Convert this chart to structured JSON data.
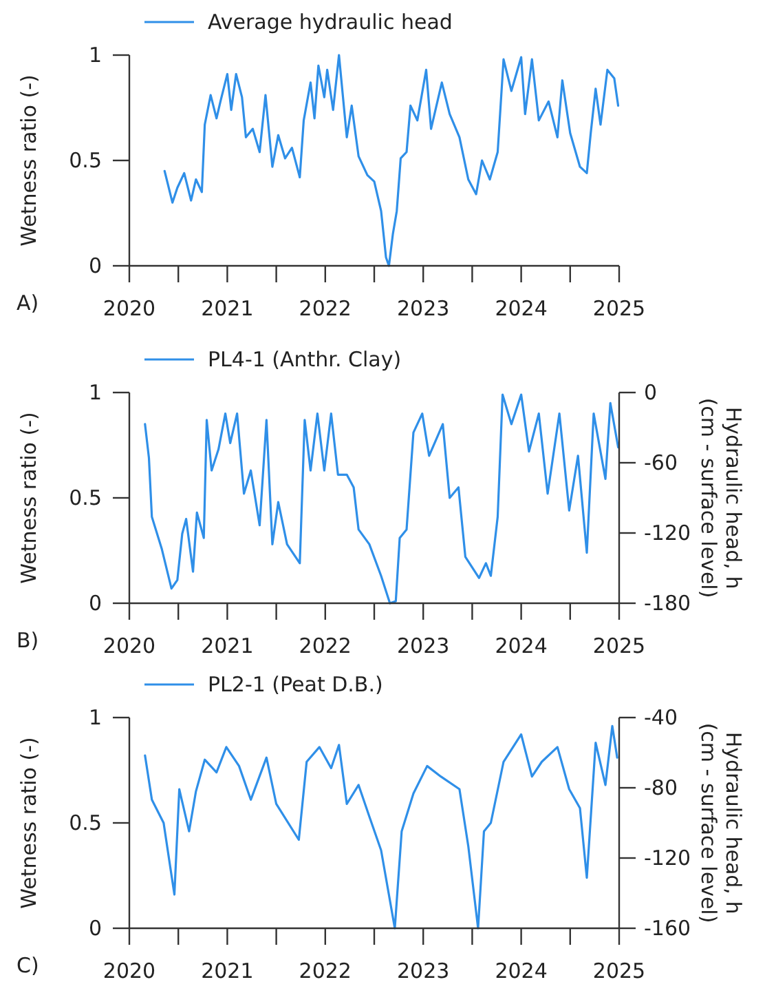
{
  "chart_data": [
    {
      "type": "line",
      "ylabel": "Wetness ratio (-)",
      "annotations": [
        "A)"
      ],
      "legend": "top left",
      "xlim": [
        2020,
        2025
      ],
      "xticks": [
        2020,
        {
          "value": 2020.5,
          "label": null
        },
        2021,
        {
          "value": 2021.5,
          "label": null
        },
        2022,
        {
          "value": 2022.5,
          "label": null
        },
        2023,
        {
          "value": 2023.5,
          "label": null
        },
        2024,
        {
          "value": 2024.5,
          "label": null
        },
        2025
      ],
      "ylim": [
        0,
        1
      ],
      "yticks": [
        0,
        0.5,
        1
      ],
      "series": [
        {
          "name": "Average hydraulic head",
          "color": "#2f8fe8",
          "x": [
            2020.36,
            2020.44,
            2020.49,
            2020.56,
            2020.63,
            2020.68,
            2020.74,
            2020.77,
            2020.83,
            2020.89,
            2020.93,
            2021.0,
            2021.04,
            2021.09,
            2021.15,
            2021.19,
            2021.26,
            2021.33,
            2021.39,
            2021.46,
            2021.52,
            2021.59,
            2021.66,
            2021.74,
            2021.78,
            2021.85,
            2021.89,
            2021.93,
            2021.99,
            2022.02,
            2022.08,
            2022.14,
            2022.22,
            2022.27,
            2022.34,
            2022.43,
            2022.5,
            2022.57,
            2022.62,
            2022.65,
            2022.69,
            2022.73,
            2022.77,
            2022.83,
            2022.87,
            2022.94,
            2023.03,
            2023.08,
            2023.19,
            2023.27,
            2023.37,
            2023.46,
            2023.54,
            2023.6,
            2023.68,
            2023.76,
            2023.82,
            2023.9,
            2024.0,
            2024.04,
            2024.11,
            2024.18,
            2024.28,
            2024.37,
            2024.42,
            2024.5,
            2024.6,
            2024.67,
            2024.71,
            2024.76,
            2024.81,
            2024.88,
            2024.95,
            2024.99
          ],
          "values": [
            0.45,
            0.3,
            0.37,
            0.44,
            0.31,
            0.41,
            0.35,
            0.67,
            0.81,
            0.7,
            0.78,
            0.91,
            0.74,
            0.91,
            0.8,
            0.61,
            0.65,
            0.54,
            0.81,
            0.47,
            0.62,
            0.51,
            0.56,
            0.42,
            0.69,
            0.87,
            0.7,
            0.95,
            0.8,
            0.93,
            0.74,
            1.0,
            0.61,
            0.76,
            0.52,
            0.43,
            0.4,
            0.26,
            0.04,
            0.0,
            0.15,
            0.26,
            0.51,
            0.54,
            0.76,
            0.69,
            0.93,
            0.65,
            0.87,
            0.72,
            0.61,
            0.41,
            0.34,
            0.5,
            0.41,
            0.54,
            0.98,
            0.83,
            0.99,
            0.72,
            0.98,
            0.69,
            0.78,
            0.61,
            0.88,
            0.63,
            0.47,
            0.44,
            0.63,
            0.84,
            0.67,
            0.93,
            0.89,
            0.76
          ]
        }
      ]
    },
    {
      "type": "line",
      "ylabel": "Wetness ratio (-)",
      "y2label": "Hydraulic head, h\n(cm - surface level)",
      "annotations": [
        "B)"
      ],
      "legend": "top left",
      "xlim": [
        2020,
        2025
      ],
      "xticks": [
        2020,
        {
          "value": 2020.5,
          "label": null
        },
        2021,
        {
          "value": 2021.5,
          "label": null
        },
        2022,
        {
          "value": 2022.5,
          "label": null
        },
        2023,
        {
          "value": 2023.5,
          "label": null
        },
        2024,
        {
          "value": 2024.5,
          "label": null
        },
        2025
      ],
      "ylim": [
        0,
        1
      ],
      "yticks": [
        0,
        0.5,
        1
      ],
      "y2lim": [
        -180,
        0
      ],
      "y2ticks": [
        -180,
        -120,
        -60,
        0
      ],
      "series": [
        {
          "name": "PL4-1 (Anthr. Clay)",
          "color": "#2f8fe8",
          "x": [
            2020.16,
            2020.2,
            2020.23,
            2020.33,
            2020.43,
            2020.49,
            2020.54,
            2020.58,
            2020.65,
            2020.69,
            2020.76,
            2020.79,
            2020.84,
            2020.91,
            2020.98,
            2021.03,
            2021.1,
            2021.17,
            2021.24,
            2021.33,
            2021.4,
            2021.46,
            2021.52,
            2021.61,
            2021.74,
            2021.79,
            2021.85,
            2021.92,
            2021.99,
            2022.06,
            2022.13,
            2022.22,
            2022.29,
            2022.34,
            2022.45,
            2022.57,
            2022.66,
            2022.72,
            2022.76,
            2022.83,
            2022.9,
            2022.99,
            2023.06,
            2023.2,
            2023.27,
            2023.36,
            2023.43,
            2023.57,
            2023.64,
            2023.69,
            2023.76,
            2023.81,
            2023.9,
            2024.0,
            2024.08,
            2024.18,
            2024.27,
            2024.39,
            2024.49,
            2024.58,
            2024.67,
            2024.74,
            2024.86,
            2024.91,
            2024.99
          ],
          "values": [
            0.85,
            0.69,
            0.41,
            0.26,
            0.07,
            0.11,
            0.33,
            0.4,
            0.15,
            0.43,
            0.31,
            0.87,
            0.63,
            0.73,
            0.9,
            0.76,
            0.9,
            0.52,
            0.63,
            0.37,
            0.87,
            0.28,
            0.48,
            0.28,
            0.19,
            0.87,
            0.63,
            0.9,
            0.63,
            0.9,
            0.61,
            0.61,
            0.55,
            0.35,
            0.28,
            0.13,
            0.0,
            0.01,
            0.31,
            0.35,
            0.81,
            0.9,
            0.7,
            0.85,
            0.5,
            0.55,
            0.22,
            0.12,
            0.19,
            0.13,
            0.41,
            0.99,
            0.85,
            0.99,
            0.72,
            0.9,
            0.52,
            0.9,
            0.44,
            0.7,
            0.24,
            0.9,
            0.59,
            0.95,
            0.74
          ]
        }
      ]
    },
    {
      "type": "line",
      "ylabel": "Wetness ratio (-)",
      "y2label": "Hydraulic head, h\n(cm - surface level)",
      "annotations": [
        "C)"
      ],
      "legend": "top left",
      "xlim": [
        2020,
        2025
      ],
      "xticks": [
        2020,
        {
          "value": 2020.5,
          "label": null
        },
        2021,
        {
          "value": 2021.5,
          "label": null
        },
        2022,
        {
          "value": 2022.5,
          "label": null
        },
        2023,
        {
          "value": 2023.5,
          "label": null
        },
        2024,
        {
          "value": 2024.5,
          "label": null
        },
        2025
      ],
      "ylim": [
        0,
        1
      ],
      "yticks": [
        0,
        0.5,
        1
      ],
      "y2lim": [
        -160,
        -40
      ],
      "y2ticks": [
        -160,
        -120,
        -80,
        -40
      ],
      "series": [
        {
          "name": "PL2-1 (Peat D.B.)",
          "color": "#2f8fe8",
          "x": [
            2020.16,
            2020.23,
            2020.35,
            2020.46,
            2020.51,
            2020.61,
            2020.68,
            2020.77,
            2020.89,
            2020.99,
            2021.12,
            2021.24,
            2021.4,
            2021.5,
            2021.73,
            2021.81,
            2021.94,
            2022.06,
            2022.14,
            2022.22,
            2022.34,
            2022.45,
            2022.57,
            2022.71,
            2022.78,
            2022.9,
            2023.04,
            2023.18,
            2023.37,
            2023.46,
            2023.56,
            2023.62,
            2023.69,
            2023.82,
            2024.0,
            2024.11,
            2024.21,
            2024.37,
            2024.49,
            2024.6,
            2024.67,
            2024.76,
            2024.86,
            2024.93,
            2024.98
          ],
          "values": [
            0.82,
            0.61,
            0.5,
            0.16,
            0.66,
            0.46,
            0.65,
            0.8,
            0.74,
            0.86,
            0.77,
            0.61,
            0.81,
            0.59,
            0.42,
            0.79,
            0.86,
            0.76,
            0.87,
            0.59,
            0.68,
            0.53,
            0.37,
            0.0,
            0.46,
            0.64,
            0.77,
            0.72,
            0.66,
            0.39,
            0.0,
            0.46,
            0.5,
            0.79,
            0.92,
            0.72,
            0.79,
            0.86,
            0.66,
            0.57,
            0.24,
            0.88,
            0.68,
            0.96,
            0.81
          ]
        }
      ]
    }
  ]
}
